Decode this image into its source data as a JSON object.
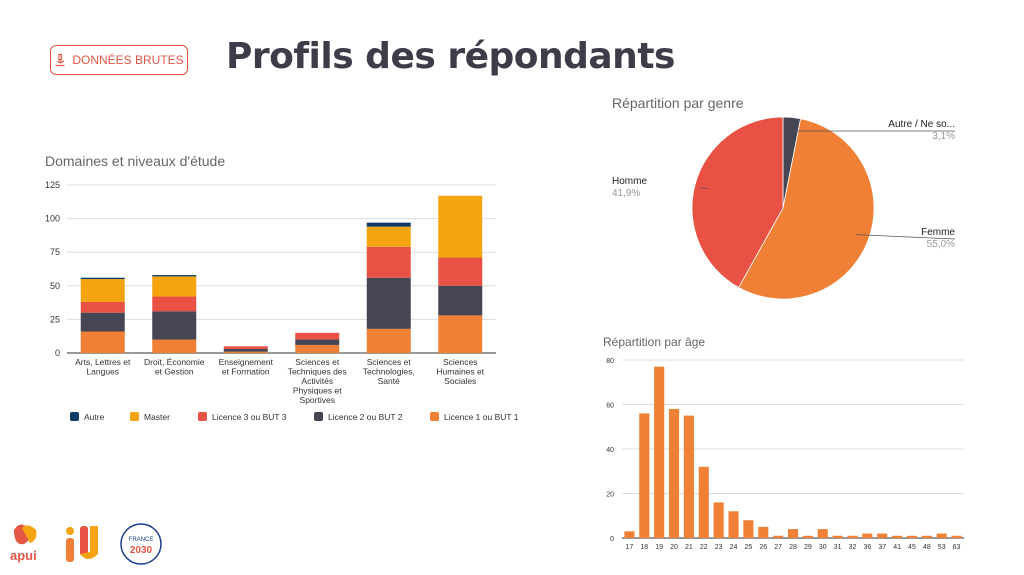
{
  "header": {
    "badge_label": "DONNÉES BRUTES",
    "title": "Profils des répondants"
  },
  "colors": {
    "autre": "#0d3b66",
    "master": "#f5a30f",
    "licence3": "#e85144",
    "licence2": "#454553",
    "licence1": "#ef8036",
    "accent": "#e35745"
  },
  "chart_data": [
    {
      "type": "bar",
      "stacked": true,
      "title": "Domaines et niveaux d'étude",
      "categories": [
        [
          "Arts, Lettres et",
          "Langues"
        ],
        [
          "Droit, Économie",
          "et Gestion"
        ],
        [
          "Enseignement",
          "et Formation"
        ],
        [
          "Sciences et",
          "Techniques des",
          "Activités",
          "Physiques et",
          "Sportives"
        ],
        [
          "Sciences et",
          "Technologies,",
          "Santé"
        ],
        [
          "Sciences",
          "Humaines et",
          "Sociales"
        ]
      ],
      "series": [
        {
          "name": "Licence 1 ou BUT 1",
          "color": "#ef8036",
          "values": [
            16,
            10,
            1,
            6,
            18,
            28
          ]
        },
        {
          "name": "Licence 2 ou BUT 2",
          "color": "#454553",
          "values": [
            14,
            21,
            2,
            4,
            38,
            22
          ]
        },
        {
          "name": "Licence 3 ou BUT 3",
          "color": "#e85144",
          "values": [
            8,
            11,
            2,
            5,
            23,
            21
          ]
        },
        {
          "name": "Master",
          "color": "#f5a30f",
          "values": [
            17,
            15,
            0,
            0,
            15,
            46
          ]
        },
        {
          "name": "Autre",
          "color": "#0d3b66",
          "values": [
            1,
            1,
            0,
            0,
            3,
            0
          ]
        }
      ],
      "legend_order": [
        "Autre",
        "Master",
        "Licence 3 ou BUT 3",
        "Licence 2 ou BUT 2",
        "Licence 1 ou BUT 1"
      ],
      "yticks": [
        "0",
        "25",
        "50",
        "75",
        "100",
        "125"
      ],
      "ylim": [
        0,
        125
      ],
      "legend_position": "bottom"
    },
    {
      "type": "pie",
      "title": "Répartition par genre",
      "slices": [
        {
          "label": "Autre / Ne so...",
          "value": 3.1,
          "pct": "3,1%",
          "color": "#454553"
        },
        {
          "label": "Femme",
          "value": 55.0,
          "pct": "55,0%",
          "color": "#ef8036"
        },
        {
          "label": "Homme",
          "value": 41.9,
          "pct": "41,9%",
          "color": "#e85144"
        }
      ]
    },
    {
      "type": "bar",
      "title": "Répartition par âge",
      "color": "#ef8036",
      "categories": [
        "17",
        "18",
        "19",
        "20",
        "21",
        "22",
        "23",
        "24",
        "25",
        "26",
        "27",
        "28",
        "29",
        "30",
        "31",
        "32",
        "36",
        "37",
        "41",
        "45",
        "48",
        "53",
        "63"
      ],
      "values": [
        3,
        56,
        77,
        58,
        55,
        32,
        16,
        12,
        8,
        5,
        1,
        4,
        1,
        4,
        1,
        1,
        2,
        2,
        1,
        1,
        1,
        2,
        1
      ],
      "yticks": [
        "0",
        "20",
        "40",
        "60",
        "80"
      ],
      "ylim": [
        0,
        80
      ]
    }
  ],
  "logos": {
    "apui_text": "apui",
    "france_text": "FRANCE",
    "france_year": "2030"
  }
}
